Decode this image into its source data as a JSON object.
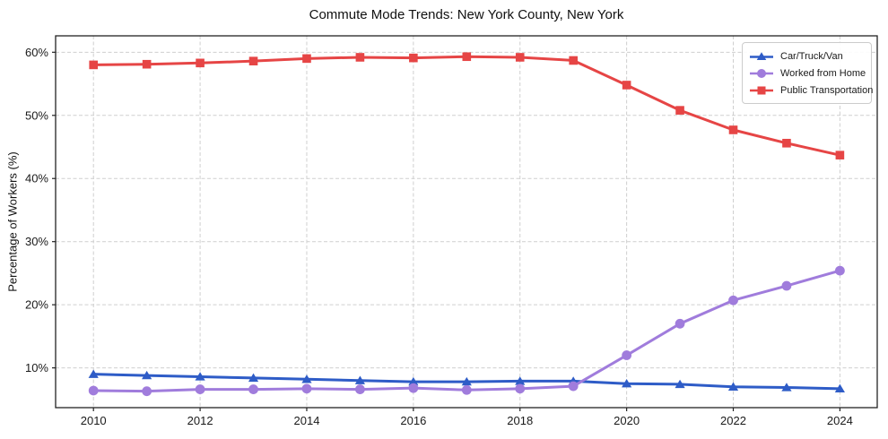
{
  "chart_data": {
    "type": "line",
    "title": "Commute Mode Trends: New York County, New York",
    "xlabel": "",
    "ylabel": "Percentage of Workers (%)",
    "x": [
      2010,
      2011,
      2012,
      2013,
      2014,
      2015,
      2016,
      2017,
      2018,
      2019,
      2020,
      2021,
      2022,
      2023,
      2024
    ],
    "series": [
      {
        "name": "Car/Truck/Van",
        "color": "#2e5cc7",
        "marker": "triangle",
        "values": [
          9.0,
          8.8,
          8.6,
          8.4,
          8.2,
          8.0,
          7.8,
          7.8,
          7.9,
          7.9,
          7.5,
          7.4,
          7.0,
          6.9,
          6.7
        ]
      },
      {
        "name": "Worked from Home",
        "color": "#a07cdc",
        "marker": "circle",
        "values": [
          6.4,
          6.3,
          6.6,
          6.6,
          6.7,
          6.6,
          6.8,
          6.5,
          6.7,
          7.1,
          12.0,
          17.0,
          20.7,
          23.0,
          25.4
        ]
      },
      {
        "name": "Public Transportation",
        "color": "#e64545",
        "marker": "square",
        "values": [
          58.0,
          58.1,
          58.3,
          58.6,
          59.0,
          59.2,
          59.1,
          59.3,
          59.2,
          58.7,
          54.8,
          50.8,
          47.7,
          45.6,
          43.7
        ]
      }
    ],
    "xticks": [
      2010,
      2012,
      2014,
      2016,
      2018,
      2020,
      2022,
      2024
    ],
    "xtick_labels": [
      "2010",
      "2012",
      "2014",
      "2016",
      "2018",
      "2020",
      "2022",
      "2024"
    ],
    "yticks": [
      10,
      20,
      30,
      40,
      50,
      60
    ],
    "ytick_labels": [
      "10%",
      "20%",
      "30%",
      "40%",
      "50%",
      "60%"
    ],
    "xlim": [
      2009.29,
      2024.7
    ],
    "ylim": [
      3.7,
      62.6
    ],
    "grid": true,
    "grid_style": "dashed",
    "legend_position": "upper right"
  }
}
